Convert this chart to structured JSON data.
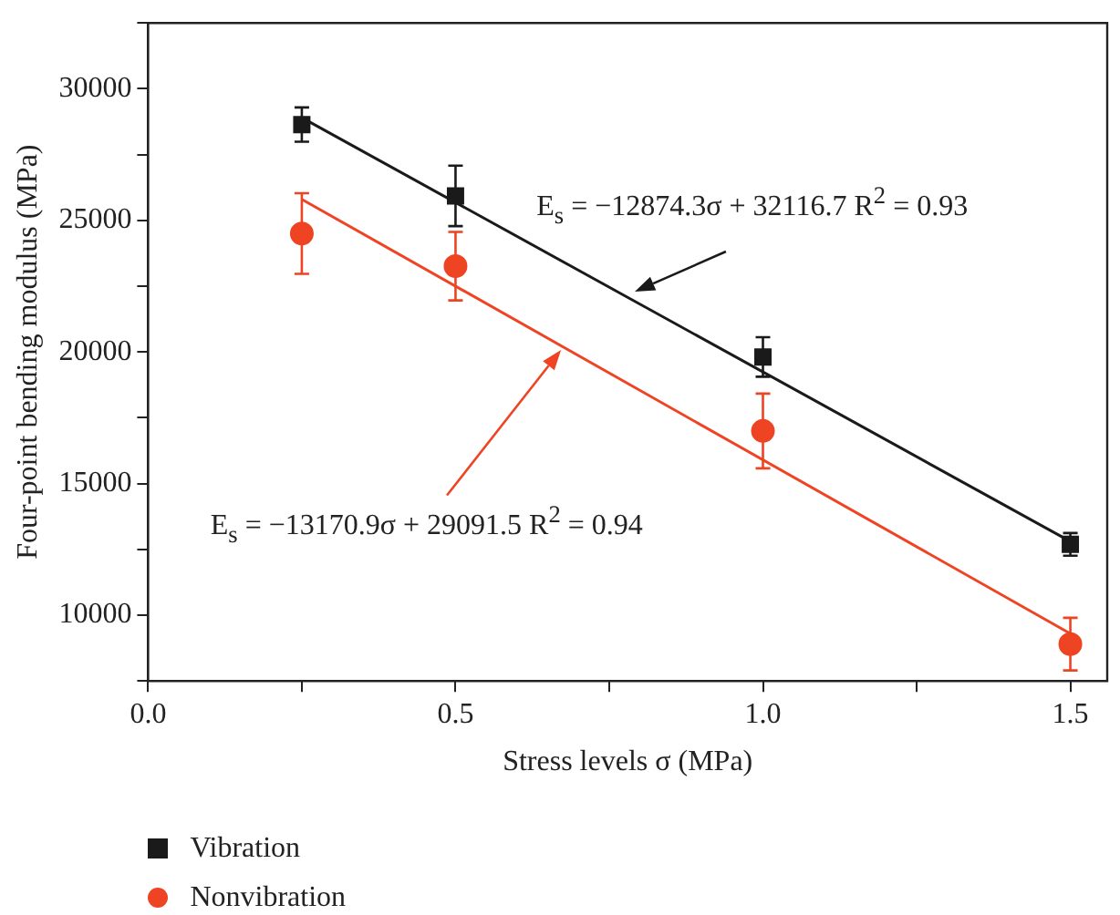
{
  "chart_data": {
    "type": "scatter",
    "xlabel": "Stress levels σ (MPa)",
    "ylabel": "Four-point bending modulus (MPa)",
    "xlim": [
      0,
      1.56
    ],
    "xticks": [
      {
        "value": 0,
        "label": "0.0"
      },
      {
        "value": 0.25,
        "label": null
      },
      {
        "value": 0.5,
        "label": "0.5"
      },
      {
        "value": 0.75,
        "label": null
      },
      {
        "value": 1,
        "label": "1.0"
      },
      {
        "value": 1.25,
        "label": null
      },
      {
        "value": 1.5,
        "label": "1.5"
      }
    ],
    "ylim": [
      7500,
      32500
    ],
    "yticks": [
      {
        "value": 7500,
        "label": null
      },
      10000,
      {
        "value": 12500,
        "label": null
      },
      15000,
      {
        "value": 17500,
        "label": null
      },
      20000,
      {
        "value": 22500,
        "label": null
      },
      25000,
      {
        "value": 27500,
        "label": null
      },
      30000,
      {
        "value": 32500,
        "label": null
      }
    ],
    "grid": false,
    "legend": "bottom left",
    "series": [
      {
        "name": "Vibration",
        "color": "#1a1a1a",
        "marker": "square",
        "x": [
          0.25,
          0.5,
          1,
          1.5
        ],
        "values": [
          28640,
          25930,
          19810,
          12690
        ],
        "errors": [
          650,
          1150,
          750,
          430
        ]
      },
      {
        "name": "Nonvibration",
        "color": "#ee4423",
        "marker": "circle",
        "x": [
          0.25,
          0.5,
          1,
          1.5
        ],
        "values": [
          24500,
          23260,
          17000,
          8900
        ],
        "errors": [
          1530,
          1300,
          1420,
          1000
        ]
      },
      {
        "type": "line",
        "color": "#1a1a1a",
        "marker": "none",
        "x": [
          0.25,
          1.5
        ],
        "values": [
          28900,
          12800
        ]
      },
      {
        "type": "line",
        "color": "#ee4423",
        "marker": "none",
        "x": [
          0.25,
          1.5
        ],
        "values": [
          25800,
          9300
        ]
      }
    ],
    "annotations": [
      "E$_{s}$ = −12874.3σ + 32116.7 R$^{2}$ = 0.93",
      "E$_{s}$ = −13170.9σ + 29091.5 R$^{2}$ = 0.94"
    ]
  }
}
